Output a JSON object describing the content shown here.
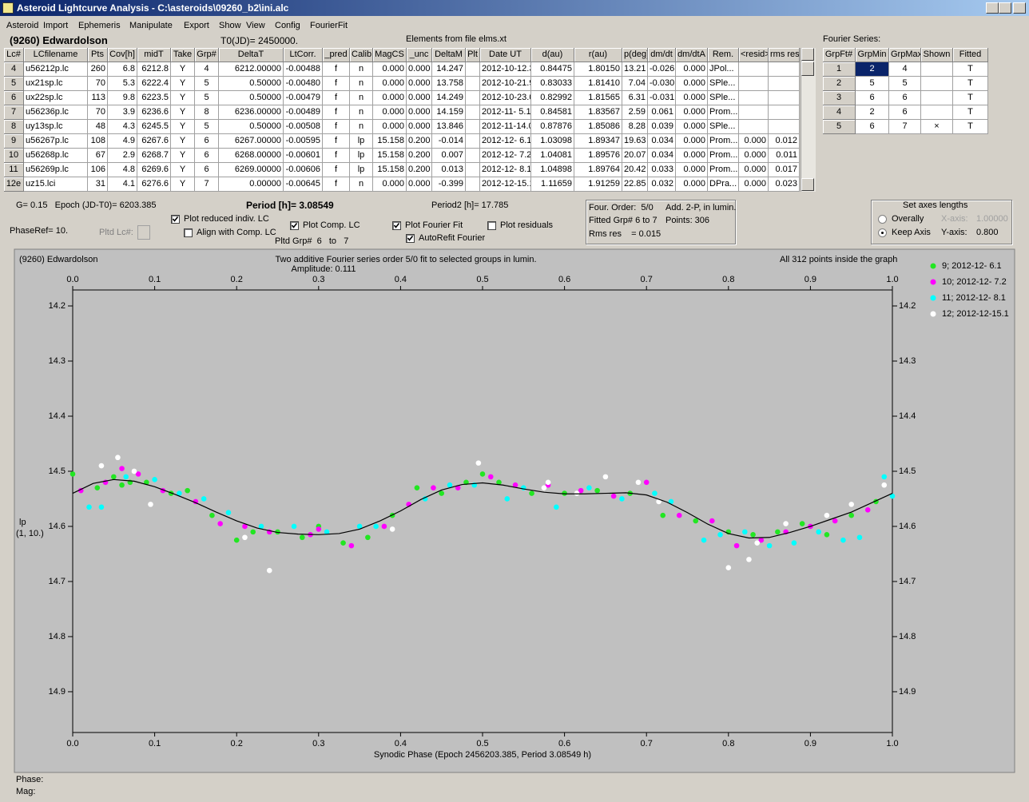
{
  "window": {
    "title": "Asteroid Lightcurve Analysis - C:\\asteroids\\09260_b2\\ini.alc"
  },
  "menu": [
    "Asteroid",
    "Import",
    "Ephemeris",
    "Manipulate",
    "Export",
    "Show",
    "View",
    "Config",
    "FourierFit"
  ],
  "header": {
    "object": "(9260) Edwardolson",
    "t0": "T0(JD)= 2450000.",
    "elements": "Elements from file elms.xt",
    "fourier_label": "Fourier Series:"
  },
  "lc_table": {
    "columns": [
      "Lc#",
      "LCfilename",
      "Pts",
      "Cov[h]",
      "midT",
      "Take",
      "Grp#",
      "DeltaT",
      "LtCorr.",
      "_pred",
      "Calib.",
      "MagCS",
      "_unc",
      "DeltaM",
      "Plt",
      "Date UT",
      "d(au)",
      "r(au)",
      "p(deg)",
      "dm/dt",
      "dm/dtA",
      "Rem.",
      "<resid>",
      "rms res"
    ],
    "rows": [
      [
        "4",
        "u56212p.lc",
        "260",
        "6.8",
        "6212.8",
        "Y",
        "4",
        "6212.00000",
        "-0.00488",
        "f",
        "n",
        "0.000",
        "0.000",
        "14.247",
        null,
        "2012-10-12.3",
        "0.84475",
        "1.80150",
        "13.21",
        "-0.026",
        "0.000",
        "JPol...",
        null,
        null
      ],
      [
        "5",
        "ux21sp.lc",
        "70",
        "5.3",
        "6222.4",
        "Y",
        "5",
        "0.50000",
        "-0.00480",
        "f",
        "n",
        "0.000",
        "0.000",
        "13.758",
        null,
        "2012-10-21.9",
        "0.83033",
        "1.81410",
        "7.04",
        "-0.030",
        "0.000",
        "SPle...",
        null,
        null
      ],
      [
        "6",
        "ux22sp.lc",
        "113",
        "9.8",
        "6223.5",
        "Y",
        "5",
        "0.50000",
        "-0.00479",
        "f",
        "n",
        "0.000",
        "0.000",
        "14.249",
        null,
        "2012-10-23.0",
        "0.82992",
        "1.81565",
        "6.31",
        "-0.031",
        "0.000",
        "SPle...",
        null,
        null
      ],
      [
        "7",
        "u56236p.lc",
        "70",
        "3.9",
        "6236.6",
        "Y",
        "8",
        "6236.00000",
        "-0.00489",
        "f",
        "n",
        "0.000",
        "0.000",
        "14.159",
        null,
        "2012-11- 5.1",
        "0.84581",
        "1.83567",
        "2.59",
        "0.061",
        "0.000",
        "Prom...",
        null,
        null
      ],
      [
        "8",
        "uy13sp.lc",
        "48",
        "4.3",
        "6245.5",
        "Y",
        "5",
        "0.50000",
        "-0.00508",
        "f",
        "n",
        "0.000",
        "0.000",
        "13.846",
        null,
        "2012-11-14.0",
        "0.87876",
        "1.85086",
        "8.28",
        "0.039",
        "0.000",
        "SPle...",
        null,
        null
      ],
      [
        "9",
        "u56267p.lc",
        "108",
        "4.9",
        "6267.6",
        "Y",
        "6",
        "6267.00000",
        "-0.00595",
        "f",
        "lp",
        "15.158",
        "0.200",
        "-0.014",
        null,
        "2012-12- 6.1",
        "1.03098",
        "1.89347",
        "19.63",
        "0.034",
        "0.000",
        "Prom...",
        "0.000",
        "0.012"
      ],
      [
        "10",
        "u56268p.lc",
        "67",
        "2.9",
        "6268.7",
        "Y",
        "6",
        "6268.00000",
        "-0.00601",
        "f",
        "lp",
        "15.158",
        "0.200",
        "0.007",
        null,
        "2012-12- 7.2",
        "1.04081",
        "1.89576",
        "20.07",
        "0.034",
        "0.000",
        "Prom...",
        "0.000",
        "0.011"
      ],
      [
        "11",
        "u56269p.lc",
        "106",
        "4.8",
        "6269.6",
        "Y",
        "6",
        "6269.00000",
        "-0.00606",
        "f",
        "lp",
        "15.158",
        "0.200",
        "0.013",
        null,
        "2012-12- 8.1",
        "1.04898",
        "1.89764",
        "20.42",
        "0.033",
        "0.000",
        "Prom...",
        "0.000",
        "0.017"
      ],
      [
        "12e",
        "uz15.lci",
        "31",
        "4.1",
        "6276.6",
        "Y",
        "7",
        "0.00000",
        "-0.00645",
        "f",
        "n",
        "0.000",
        "0.000",
        "-0.399",
        null,
        "2012-12-15.1",
        "1.11659",
        "1.91259",
        "22.85",
        "0.032",
        "0.000",
        "DPra...",
        "0.000",
        "0.023"
      ]
    ]
  },
  "fourier_table": {
    "columns": [
      "GrpFt#",
      "GrpMin",
      "GrpMax",
      "Shown",
      "Fitted"
    ],
    "rows": [
      [
        "1",
        "2",
        "4",
        null,
        "T"
      ],
      [
        "2",
        "5",
        "5",
        null,
        "T"
      ],
      [
        "3",
        "6",
        "6",
        null,
        "T"
      ],
      [
        "4",
        "2",
        "6",
        null,
        "T"
      ],
      [
        "5",
        "6",
        "7",
        "×",
        "T"
      ]
    ]
  },
  "controls": {
    "g_epoch": "G= 0.15   Epoch (JD-T0)= 6203.385",
    "period": "Period [h]= 3.08549",
    "period2": "Period2 [h]= 17.785",
    "phase_ref": "PhaseRef= 10.",
    "pltd_lc": "Pltd Lc#:",
    "pltd_grp": "Pltd Grp#  6   to   7",
    "checkboxes": [
      {
        "label": "Plot reduced indiv. LC",
        "checked": true
      },
      {
        "label": "Align with Comp. LC",
        "checked": false
      },
      {
        "label": "Plot Comp. LC",
        "checked": true
      },
      {
        "label": "Plot Fourier Fit",
        "checked": true
      },
      {
        "label": "AutoRefit Fourier",
        "checked": true
      },
      {
        "label": "Plot residuals",
        "checked": false
      }
    ]
  },
  "fit_info": [
    "Four. Order:  5/0",
    "Add. 2-P, in lumin.",
    "Fitted Grp# 6 to 7",
    "Points: 306",
    "Rms res    = 0.015"
  ],
  "axes_box": {
    "title": "Set axes lengths",
    "overall": "Overally",
    "keep": "Keep Axis",
    "x_label": "X-axis:",
    "x_value": "1.00000",
    "y_label": "Y-axis:",
    "y_value": "0.800",
    "selected": "keep"
  },
  "chart_data": {
    "type": "scatter",
    "object": "(9260) Edwardolson",
    "title": "Two additive Fourier series order 5/0 fit to selected groups in lumin.",
    "subtitle": "Amplitude: 0.111",
    "note": "All 312 points inside the graph",
    "ylabel": "lp",
    "ylabel2": "(1, 10.)",
    "xlabel": "Synodic Phase (Epoch 2456203.385, Period 3.08549 h)",
    "xlim": [
      0,
      1
    ],
    "ylim": [
      14.171,
      14.974
    ],
    "y_reversed": true,
    "xticks": [
      {
        "value": 0,
        "label": "0.0"
      },
      0.1,
      0.2,
      0.3,
      0.4,
      0.5,
      0.6,
      0.7,
      0.8,
      0.9,
      {
        "value": 1,
        "label": "1.0"
      }
    ],
    "yticks": [
      14.2,
      14.3,
      14.4,
      14.5,
      14.6,
      14.7,
      14.8,
      14.9
    ],
    "legend": "right",
    "series": [
      {
        "name": "9; 2012-12- 6.1",
        "color": "#22e622",
        "x": [
          0.0,
          0.03,
          0.05,
          0.06,
          0.07,
          0.09,
          0.12,
          0.14,
          0.17,
          0.2,
          0.22,
          0.25,
          0.28,
          0.3,
          0.33,
          0.36,
          0.39,
          0.42,
          0.45,
          0.48,
          0.5,
          0.52,
          0.56,
          0.6,
          0.64,
          0.68,
          0.72,
          0.76,
          0.8,
          0.83,
          0.86,
          0.89,
          0.92,
          0.95,
          0.98
        ],
        "values": [
          14.505,
          14.53,
          14.51,
          14.525,
          14.52,
          14.52,
          14.54,
          14.535,
          14.58,
          14.625,
          14.61,
          14.61,
          14.62,
          14.6,
          14.63,
          14.62,
          14.58,
          14.53,
          14.54,
          14.52,
          14.505,
          14.52,
          14.54,
          14.54,
          14.535,
          14.54,
          14.58,
          14.59,
          14.61,
          14.615,
          14.61,
          14.595,
          14.615,
          14.58,
          14.555
        ]
      },
      {
        "name": "10; 2012-12- 7.2",
        "color": "#ff00ff",
        "x": [
          0.01,
          0.04,
          0.06,
          0.08,
          0.11,
          0.15,
          0.18,
          0.21,
          0.24,
          0.29,
          0.3,
          0.34,
          0.38,
          0.41,
          0.44,
          0.47,
          0.51,
          0.54,
          0.58,
          0.62,
          0.66,
          0.7,
          0.74,
          0.78,
          0.81,
          0.84,
          0.87,
          0.9,
          0.93,
          0.97
        ],
        "values": [
          14.535,
          14.52,
          14.495,
          14.505,
          14.535,
          14.555,
          14.595,
          14.6,
          14.61,
          14.615,
          14.605,
          14.635,
          14.6,
          14.56,
          14.53,
          14.53,
          14.51,
          14.525,
          14.525,
          14.535,
          14.545,
          14.52,
          14.58,
          14.59,
          14.635,
          14.625,
          14.61,
          14.6,
          14.59,
          14.57
        ]
      },
      {
        "name": "11; 2012-12- 8.1",
        "color": "#00ffff",
        "x": [
          0.02,
          0.035,
          0.065,
          0.1,
          0.13,
          0.16,
          0.19,
          0.23,
          0.27,
          0.31,
          0.35,
          0.37,
          0.43,
          0.46,
          0.49,
          0.53,
          0.55,
          0.59,
          0.63,
          0.67,
          0.71,
          0.73,
          0.77,
          0.79,
          0.82,
          0.85,
          0.88,
          0.91,
          0.94,
          0.96,
          0.99,
          1.0
        ],
        "values": [
          14.565,
          14.565,
          14.51,
          14.515,
          14.54,
          14.55,
          14.575,
          14.6,
          14.6,
          14.61,
          14.6,
          14.6,
          14.55,
          14.525,
          14.525,
          14.55,
          14.53,
          14.565,
          14.53,
          14.55,
          14.54,
          14.555,
          14.625,
          14.615,
          14.61,
          14.635,
          14.63,
          14.61,
          14.625,
          14.62,
          14.51,
          14.545
        ]
      },
      {
        "name": "12; 2012-12-15.1",
        "color": "#ffffff",
        "x": [
          0.035,
          0.055,
          0.075,
          0.095,
          0.21,
          0.24,
          0.39,
          0.495,
          0.575,
          0.58,
          0.615,
          0.65,
          0.69,
          0.715,
          0.8,
          0.825,
          0.835,
          0.87,
          0.92,
          0.95,
          0.99
        ],
        "values": [
          14.49,
          14.475,
          14.5,
          14.56,
          14.62,
          14.68,
          14.605,
          14.485,
          14.53,
          14.52,
          14.54,
          14.51,
          14.52,
          14.555,
          14.675,
          14.66,
          14.63,
          14.595,
          14.58,
          14.56,
          14.525
        ]
      }
    ],
    "fit": {
      "color": "#000000",
      "x": [
        0,
        0.025,
        0.05,
        0.075,
        0.1,
        0.125,
        0.15,
        0.175,
        0.2,
        0.225,
        0.25,
        0.275,
        0.3,
        0.325,
        0.35,
        0.375,
        0.4,
        0.425,
        0.45,
        0.475,
        0.5,
        0.525,
        0.55,
        0.575,
        0.6,
        0.625,
        0.65,
        0.675,
        0.7,
        0.725,
        0.75,
        0.775,
        0.8,
        0.825,
        0.85,
        0.875,
        0.9,
        0.925,
        0.95,
        0.975,
        1
      ],
      "values": [
        14.54,
        14.522,
        14.515,
        14.518,
        14.528,
        14.542,
        14.557,
        14.574,
        14.59,
        14.603,
        14.611,
        14.614,
        14.615,
        14.613,
        14.605,
        14.59,
        14.572,
        14.551,
        14.534,
        14.524,
        14.521,
        14.525,
        14.532,
        14.538,
        14.541,
        14.541,
        14.54,
        14.539,
        14.543,
        14.556,
        14.575,
        14.596,
        14.613,
        14.621,
        14.62,
        14.611,
        14.6,
        14.587,
        14.574,
        14.557,
        14.54
      ]
    }
  },
  "status": {
    "phase": "Phase:",
    "mag": "Mag:"
  }
}
